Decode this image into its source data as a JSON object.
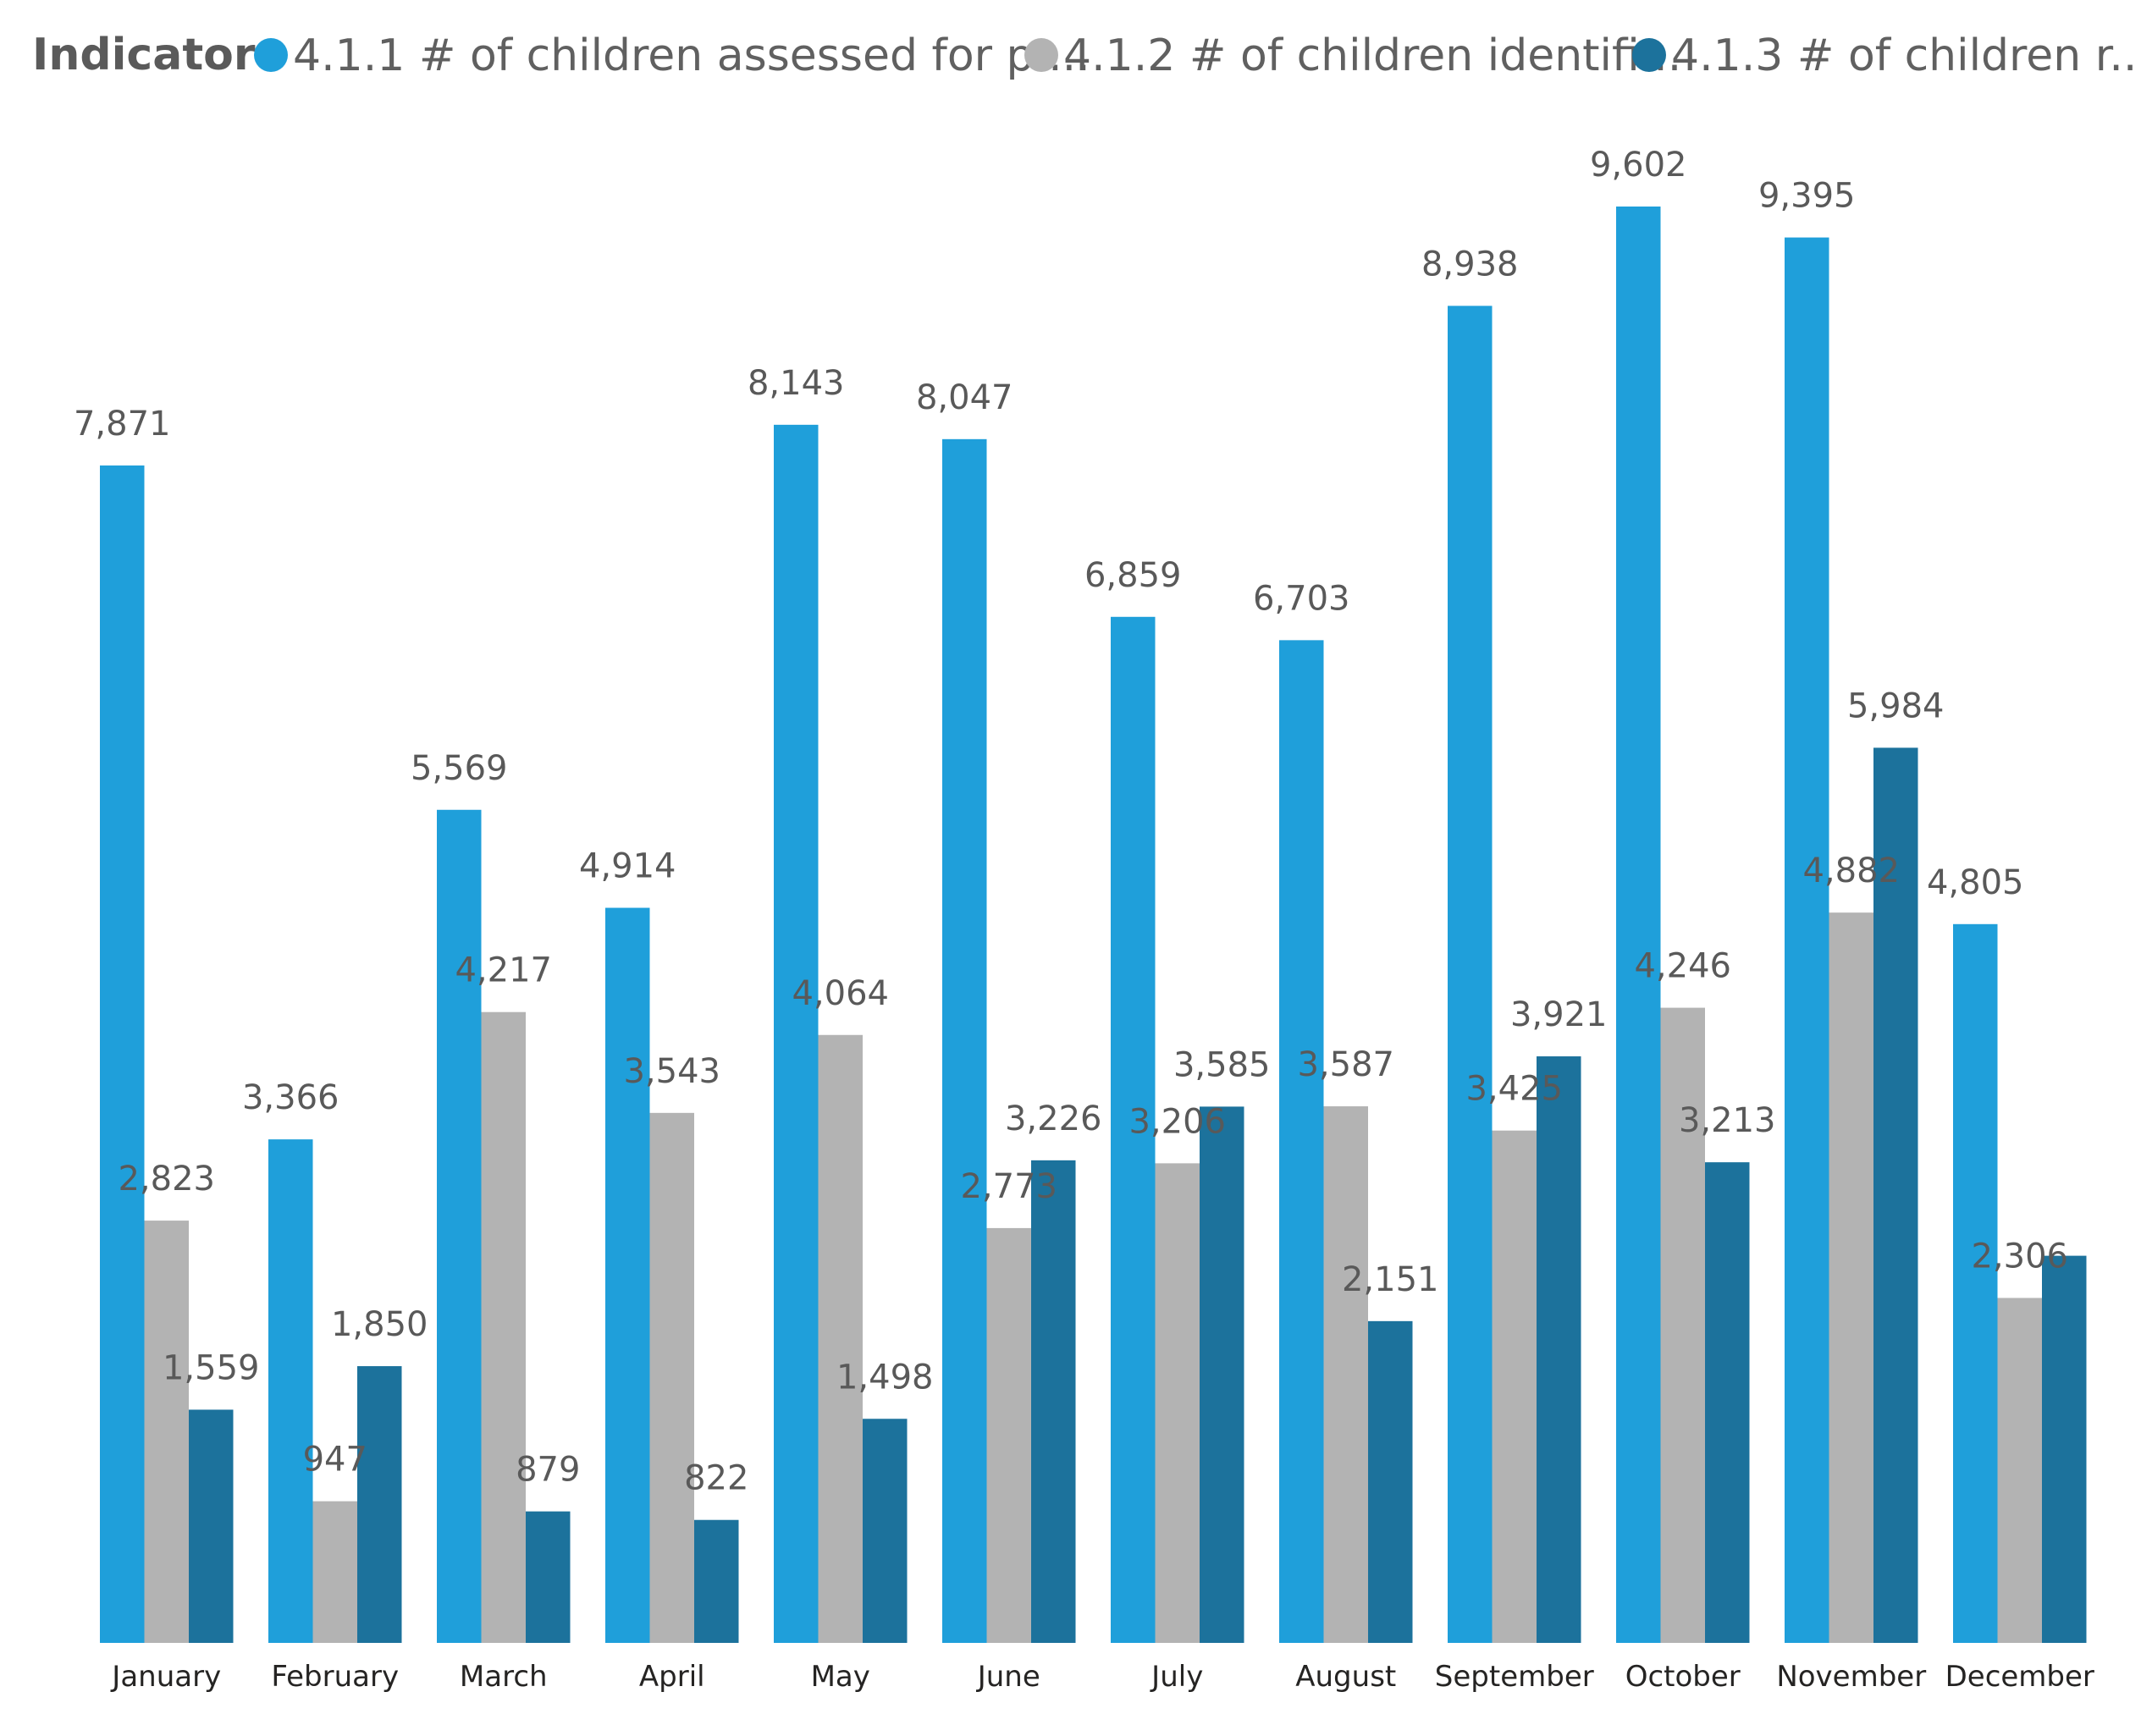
{
  "legend": {
    "title": "Indicator",
    "items": [
      {
        "label": "4.1.1 # of children assessed for pr...",
        "color": "#1f9fda"
      },
      {
        "label": "4.1.2 # of children identifi...",
        "color": "#b3b3b3"
      },
      {
        "label": "4.1.3 # of children r...",
        "color": "#1c729c"
      }
    ]
  },
  "chart_data": {
    "type": "bar",
    "categories": [
      "January",
      "February",
      "March",
      "April",
      "May",
      "June",
      "July",
      "August",
      "September",
      "October",
      "November",
      "December"
    ],
    "series": [
      {
        "name": "4.1.1 # of children assessed for pr...",
        "color": "#1f9fda",
        "values": [
          7871,
          3366,
          5569,
          4914,
          8143,
          8047,
          6859,
          6703,
          8938,
          9602,
          9395,
          4805
        ],
        "labels": [
          "7,871",
          "3,366",
          "5,569",
          "4,914",
          "8,143",
          "8,047",
          "6,859",
          "6,703",
          "8,938",
          "9,602",
          "9,395",
          "4,805"
        ]
      },
      {
        "name": "4.1.2 # of children identifi...",
        "color": "#b3b3b3",
        "values": [
          2823,
          947,
          4217,
          3543,
          4064,
          2773,
          3206,
          3587,
          3425,
          4246,
          4882,
          2306
        ],
        "labels": [
          "2,823",
          "947",
          "4,217",
          "3,543",
          "4,064",
          "2,773",
          "3,206",
          "3,587",
          "3,425",
          "4,246",
          "4,882",
          "2,306"
        ]
      },
      {
        "name": "4.1.3 # of children r...",
        "color": "#1c729c",
        "values": [
          1559,
          1850,
          879,
          822,
          1498,
          3226,
          3585,
          2151,
          3921,
          3213,
          5984,
          2588
        ],
        "labels": [
          "1,559",
          "1,850",
          "879",
          "822",
          "1,498",
          "3,226",
          "3,585",
          "2,151",
          "3,921",
          "3,213",
          "5,984",
          ""
        ]
      }
    ],
    "ylim": [
      0,
      9602
    ],
    "grid": false,
    "legend_position": "top-left",
    "data_labels": true
  }
}
